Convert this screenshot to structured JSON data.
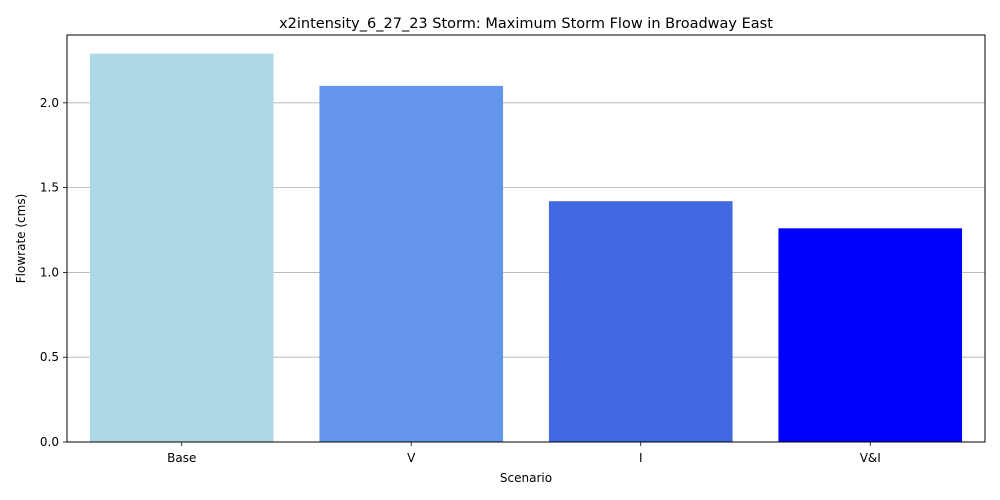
{
  "chart_data": {
    "type": "bar",
    "title": "x2intensity_6_27_23 Storm: Maximum Storm Flow in Broadway East",
    "xlabel": "Scenario",
    "ylabel": "Flowrate (cms)",
    "categories": [
      "Base",
      "V",
      "I",
      "V&I"
    ],
    "values": [
      2.29,
      2.1,
      1.42,
      1.26
    ],
    "colors": [
      "#add8e6",
      "#6495ed",
      "#4169e1",
      "#0000ff"
    ],
    "ylim": [
      0,
      2.4
    ],
    "yticks": [
      "0.0",
      "0.5",
      "1.0",
      "1.5",
      "2.0"
    ],
    "grid": "y",
    "legend": "none"
  }
}
